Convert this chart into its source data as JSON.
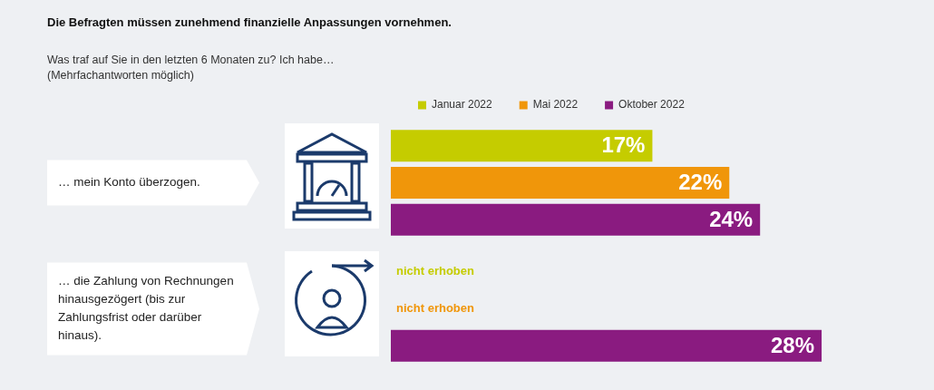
{
  "chart_data": {
    "type": "bar",
    "orientation": "horizontal",
    "title": "Die Befragten müssen zunehmend finanzielle Anpassungen vornehmen.",
    "subtitle": "Was traf auf Sie in den letzten 6 Monaten zu? Ich habe…\n(Mehrfachantworten möglich)",
    "categories": [
      "… mein Konto überzogen.",
      "… die Zahlung von Rechnungen hinausgezögert (bis zur Zahlungsfrist oder darüber hinaus)."
    ],
    "series": [
      {
        "name": "Januar 2022",
        "color": "#c5cc00",
        "values": [
          17,
          null
        ],
        "value_labels": [
          "17%",
          "nicht erhoben"
        ]
      },
      {
        "name": "Mai 2022",
        "color": "#f0960a",
        "values": [
          22,
          null
        ],
        "value_labels": [
          "22%",
          "nicht erhoben"
        ]
      },
      {
        "name": "Oktober 2022",
        "color": "#8a1b80",
        "values": [
          24,
          28
        ],
        "value_labels": [
          "24%",
          "28%"
        ]
      }
    ],
    "tick_labels": false,
    "legend": "top"
  }
}
